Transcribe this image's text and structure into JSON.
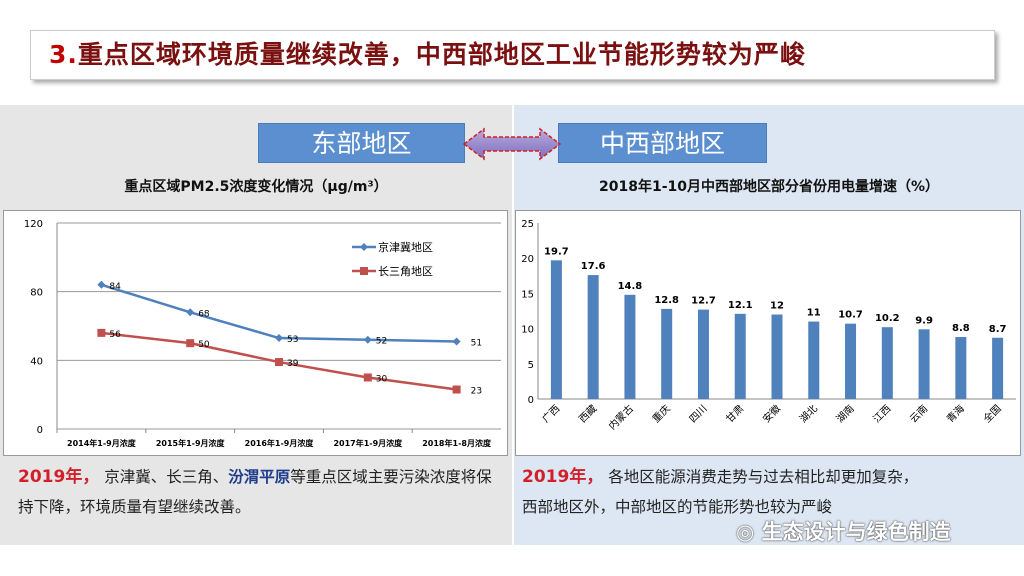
{
  "title": {
    "number": "3.",
    "text": "重点区域环境质量继续改善，中西部地区工业节能形势较为严峻"
  },
  "regions": {
    "east": "东部地区",
    "central_west": "中西部地区"
  },
  "colors": {
    "blue_series": "#4f81bd",
    "red_series": "#c0504d",
    "bar": "#4f81bd",
    "accent_red": "#d0202a"
  },
  "chart_data": [
    {
      "type": "line",
      "title": "重点区域PM2.5浓度变化情况（μg/m³）",
      "categories": [
        "2014年1-9月浓度",
        "2015年1-9月浓度",
        "2016年1-9月浓度",
        "2017年1-9月浓度",
        "2018年1-8月浓度"
      ],
      "series": [
        {
          "name": "京津冀地区",
          "values": [
            84,
            68,
            53,
            52,
            51
          ]
        },
        {
          "name": "长三角地区",
          "values": [
            56,
            50,
            39,
            30,
            23
          ]
        }
      ],
      "yticks": [
        0,
        40,
        80,
        120
      ],
      "ylim": [
        0,
        120
      ],
      "legend": "top-right",
      "grid": true
    },
    {
      "type": "bar",
      "title": "2018年1-10月中西部地区部分省份用电量增速（%）",
      "categories": [
        "广西",
        "西藏",
        "内蒙古",
        "重庆",
        "四川",
        "甘肃",
        "安徽",
        "湖北",
        "湖南",
        "江西",
        "云南",
        "青海",
        "全国"
      ],
      "values": [
        19.7,
        17.6,
        14.8,
        12.8,
        12.7,
        12.1,
        12,
        11,
        10.7,
        10.2,
        9.9,
        8.8,
        8.7
      ],
      "labels": [
        "19.7",
        "17.6",
        "14.8",
        "12.8",
        "12.7",
        "12.1",
        "12",
        "11",
        "10.7",
        "10.2",
        "9.9",
        "8.8",
        "8.7"
      ],
      "yticks": [
        0,
        5,
        10,
        15,
        20,
        25
      ],
      "ylim": [
        0,
        25
      ]
    }
  ],
  "notes": {
    "left": {
      "year": "2019年，",
      "part1": "京津冀、长三角、",
      "highlight": "汾渭平原",
      "part2": "等重点区域主要污染浓度将保持下降，环境质量有望继续改善。"
    },
    "right": {
      "year": "2019年，",
      "line1": "各地区能源消费走势与过去相比却更加复杂，",
      "line2": "西部地区外，中部地区的节能形势也较为严峻"
    }
  },
  "watermark": "生态设计与绿色制造"
}
